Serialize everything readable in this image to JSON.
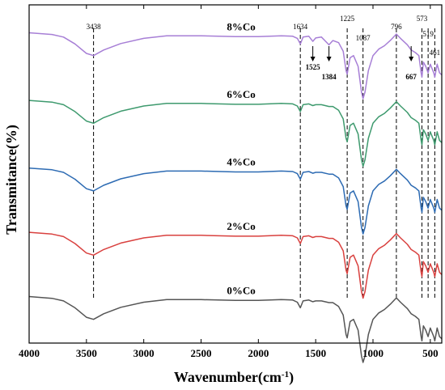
{
  "chart_data": {
    "type": "line",
    "xlabel": "Wavenumber(cm",
    "xlabel_sup": "-1",
    "xlabel_close": ")",
    "ylabel": "Transmitance(%)",
    "xlim": [
      4000,
      400
    ],
    "xticks": [
      4000,
      3500,
      3000,
      2500,
      2000,
      1500,
      1000,
      500
    ],
    "x_reversed": true,
    "grid": false,
    "legend": "none",
    "series": [
      {
        "name": "8%Co",
        "color": "#a77fd6",
        "baseline": 0.92,
        "points": [
          [
            4000,
            0.02
          ],
          [
            3800,
            0.06
          ],
          [
            3700,
            0.12
          ],
          [
            3600,
            0.28
          ],
          [
            3500,
            0.5
          ],
          [
            3438,
            0.55
          ],
          [
            3350,
            0.42
          ],
          [
            3200,
            0.27
          ],
          [
            3000,
            0.15
          ],
          [
            2800,
            0.09
          ],
          [
            2500,
            0.09
          ],
          [
            2200,
            0.11
          ],
          [
            2000,
            0.11
          ],
          [
            1800,
            0.09
          ],
          [
            1700,
            0.1
          ],
          [
            1660,
            0.15
          ],
          [
            1634,
            0.28
          ],
          [
            1610,
            0.12
          ],
          [
            1560,
            0.1
          ],
          [
            1525,
            0.22
          ],
          [
            1500,
            0.14
          ],
          [
            1450,
            0.12
          ],
          [
            1384,
            0.3
          ],
          [
            1350,
            0.2
          ],
          [
            1300,
            0.25
          ],
          [
            1260,
            0.45
          ],
          [
            1235,
            0.9
          ],
          [
            1225,
            0.98
          ],
          [
            1200,
            0.6
          ],
          [
            1170,
            0.55
          ],
          [
            1130,
            0.8
          ],
          [
            1100,
            1.4
          ],
          [
            1087,
            1.55
          ],
          [
            1070,
            1.4
          ],
          [
            1040,
            0.9
          ],
          [
            1000,
            0.55
          ],
          [
            950,
            0.4
          ],
          [
            900,
            0.32
          ],
          [
            850,
            0.2
          ],
          [
            796,
            0.05
          ],
          [
            760,
            0.15
          ],
          [
            700,
            0.3
          ],
          [
            667,
            0.42
          ],
          [
            630,
            0.48
          ],
          [
            600,
            0.55
          ],
          [
            580,
            0.95
          ],
          [
            573,
            1.05
          ],
          [
            560,
            0.7
          ],
          [
            540,
            0.8
          ],
          [
            519,
            0.95
          ],
          [
            500,
            0.75
          ],
          [
            470,
            0.95
          ],
          [
            461,
            1.05
          ],
          [
            440,
            0.75
          ],
          [
            420,
            0.95
          ],
          [
            400,
            1.0
          ]
        ]
      },
      {
        "name": "6%Co",
        "color": "#3e9a6e",
        "baseline": 0.72,
        "points": [
          [
            4000,
            0.02
          ],
          [
            3800,
            0.06
          ],
          [
            3700,
            0.12
          ],
          [
            3600,
            0.28
          ],
          [
            3500,
            0.5
          ],
          [
            3438,
            0.55
          ],
          [
            3350,
            0.42
          ],
          [
            3200,
            0.27
          ],
          [
            3000,
            0.15
          ],
          [
            2800,
            0.09
          ],
          [
            2500,
            0.09
          ],
          [
            2200,
            0.11
          ],
          [
            2000,
            0.11
          ],
          [
            1800,
            0.09
          ],
          [
            1700,
            0.1
          ],
          [
            1660,
            0.15
          ],
          [
            1634,
            0.28
          ],
          [
            1610,
            0.12
          ],
          [
            1560,
            0.1
          ],
          [
            1525,
            0.14
          ],
          [
            1500,
            0.12
          ],
          [
            1450,
            0.12
          ],
          [
            1384,
            0.16
          ],
          [
            1350,
            0.16
          ],
          [
            1300,
            0.25
          ],
          [
            1260,
            0.45
          ],
          [
            1235,
            0.9
          ],
          [
            1225,
            0.98
          ],
          [
            1200,
            0.6
          ],
          [
            1170,
            0.55
          ],
          [
            1130,
            0.8
          ],
          [
            1100,
            1.4
          ],
          [
            1087,
            1.55
          ],
          [
            1070,
            1.4
          ],
          [
            1040,
            0.9
          ],
          [
            1000,
            0.55
          ],
          [
            950,
            0.4
          ],
          [
            900,
            0.32
          ],
          [
            850,
            0.2
          ],
          [
            796,
            0.05
          ],
          [
            760,
            0.15
          ],
          [
            700,
            0.3
          ],
          [
            667,
            0.42
          ],
          [
            630,
            0.48
          ],
          [
            600,
            0.55
          ],
          [
            580,
            0.95
          ],
          [
            573,
            1.05
          ],
          [
            560,
            0.7
          ],
          [
            540,
            0.8
          ],
          [
            519,
            0.95
          ],
          [
            500,
            0.75
          ],
          [
            470,
            0.95
          ],
          [
            461,
            1.05
          ],
          [
            440,
            0.75
          ],
          [
            420,
            0.95
          ],
          [
            400,
            1.0
          ]
        ]
      },
      {
        "name": "4%Co",
        "color": "#2d6bb3",
        "baseline": 0.52,
        "points": [
          [
            4000,
            0.02
          ],
          [
            3800,
            0.06
          ],
          [
            3700,
            0.12
          ],
          [
            3600,
            0.28
          ],
          [
            3500,
            0.5
          ],
          [
            3438,
            0.55
          ],
          [
            3350,
            0.42
          ],
          [
            3200,
            0.27
          ],
          [
            3000,
            0.15
          ],
          [
            2800,
            0.09
          ],
          [
            2500,
            0.09
          ],
          [
            2200,
            0.11
          ],
          [
            2000,
            0.11
          ],
          [
            1800,
            0.09
          ],
          [
            1700,
            0.1
          ],
          [
            1660,
            0.15
          ],
          [
            1634,
            0.28
          ],
          [
            1610,
            0.12
          ],
          [
            1560,
            0.1
          ],
          [
            1525,
            0.14
          ],
          [
            1500,
            0.12
          ],
          [
            1450,
            0.12
          ],
          [
            1384,
            0.16
          ],
          [
            1350,
            0.16
          ],
          [
            1300,
            0.25
          ],
          [
            1260,
            0.45
          ],
          [
            1235,
            0.9
          ],
          [
            1225,
            0.98
          ],
          [
            1200,
            0.6
          ],
          [
            1170,
            0.55
          ],
          [
            1130,
            0.8
          ],
          [
            1100,
            1.4
          ],
          [
            1087,
            1.55
          ],
          [
            1070,
            1.4
          ],
          [
            1040,
            0.9
          ],
          [
            1000,
            0.55
          ],
          [
            950,
            0.4
          ],
          [
            900,
            0.32
          ],
          [
            850,
            0.2
          ],
          [
            796,
            0.05
          ],
          [
            760,
            0.15
          ],
          [
            700,
            0.3
          ],
          [
            667,
            0.42
          ],
          [
            630,
            0.48
          ],
          [
            600,
            0.55
          ],
          [
            580,
            0.95
          ],
          [
            573,
            1.05
          ],
          [
            560,
            0.7
          ],
          [
            540,
            0.8
          ],
          [
            519,
            0.95
          ],
          [
            500,
            0.75
          ],
          [
            470,
            0.95
          ],
          [
            461,
            1.05
          ],
          [
            440,
            0.75
          ],
          [
            420,
            0.95
          ],
          [
            400,
            1.0
          ]
        ]
      },
      {
        "name": "2%Co",
        "color": "#d9413f",
        "baseline": 0.33,
        "points": [
          [
            4000,
            0.02
          ],
          [
            3800,
            0.06
          ],
          [
            3700,
            0.12
          ],
          [
            3600,
            0.28
          ],
          [
            3500,
            0.5
          ],
          [
            3438,
            0.55
          ],
          [
            3350,
            0.42
          ],
          [
            3200,
            0.27
          ],
          [
            3000,
            0.15
          ],
          [
            2800,
            0.09
          ],
          [
            2500,
            0.09
          ],
          [
            2200,
            0.11
          ],
          [
            2000,
            0.11
          ],
          [
            1800,
            0.09
          ],
          [
            1700,
            0.1
          ],
          [
            1660,
            0.15
          ],
          [
            1634,
            0.28
          ],
          [
            1610,
            0.12
          ],
          [
            1560,
            0.1
          ],
          [
            1525,
            0.14
          ],
          [
            1500,
            0.12
          ],
          [
            1450,
            0.12
          ],
          [
            1384,
            0.16
          ],
          [
            1350,
            0.16
          ],
          [
            1300,
            0.25
          ],
          [
            1260,
            0.45
          ],
          [
            1235,
            0.9
          ],
          [
            1225,
            0.98
          ],
          [
            1200,
            0.6
          ],
          [
            1170,
            0.55
          ],
          [
            1130,
            0.8
          ],
          [
            1100,
            1.4
          ],
          [
            1087,
            1.55
          ],
          [
            1070,
            1.4
          ],
          [
            1040,
            0.9
          ],
          [
            1000,
            0.55
          ],
          [
            950,
            0.4
          ],
          [
            900,
            0.32
          ],
          [
            850,
            0.2
          ],
          [
            796,
            0.05
          ],
          [
            760,
            0.15
          ],
          [
            700,
            0.3
          ],
          [
            667,
            0.42
          ],
          [
            630,
            0.48
          ],
          [
            600,
            0.55
          ],
          [
            580,
            0.95
          ],
          [
            573,
            1.05
          ],
          [
            560,
            0.7
          ],
          [
            540,
            0.8
          ],
          [
            519,
            0.95
          ],
          [
            500,
            0.75
          ],
          [
            470,
            0.95
          ],
          [
            461,
            1.05
          ],
          [
            440,
            0.75
          ],
          [
            420,
            0.95
          ],
          [
            400,
            1.0
          ]
        ]
      },
      {
        "name": "0%Co",
        "color": "#555555",
        "baseline": 0.14,
        "points": [
          [
            4000,
            0.02
          ],
          [
            3800,
            0.06
          ],
          [
            3700,
            0.12
          ],
          [
            3600,
            0.28
          ],
          [
            3500,
            0.5
          ],
          [
            3438,
            0.55
          ],
          [
            3350,
            0.42
          ],
          [
            3200,
            0.27
          ],
          [
            3000,
            0.15
          ],
          [
            2800,
            0.09
          ],
          [
            2500,
            0.09
          ],
          [
            2200,
            0.11
          ],
          [
            2000,
            0.11
          ],
          [
            1800,
            0.09
          ],
          [
            1700,
            0.1
          ],
          [
            1660,
            0.15
          ],
          [
            1634,
            0.28
          ],
          [
            1610,
            0.12
          ],
          [
            1560,
            0.1
          ],
          [
            1525,
            0.14
          ],
          [
            1500,
            0.12
          ],
          [
            1450,
            0.12
          ],
          [
            1384,
            0.16
          ],
          [
            1350,
            0.16
          ],
          [
            1300,
            0.25
          ],
          [
            1260,
            0.45
          ],
          [
            1235,
            0.9
          ],
          [
            1225,
            0.98
          ],
          [
            1200,
            0.6
          ],
          [
            1170,
            0.55
          ],
          [
            1130,
            0.8
          ],
          [
            1100,
            1.4
          ],
          [
            1087,
            1.55
          ],
          [
            1070,
            1.4
          ],
          [
            1040,
            0.9
          ],
          [
            1000,
            0.55
          ],
          [
            950,
            0.4
          ],
          [
            900,
            0.32
          ],
          [
            850,
            0.2
          ],
          [
            796,
            0.05
          ],
          [
            760,
            0.15
          ],
          [
            700,
            0.3
          ],
          [
            667,
            0.42
          ],
          [
            630,
            0.48
          ],
          [
            600,
            0.55
          ],
          [
            580,
            0.95
          ],
          [
            573,
            1.05
          ],
          [
            560,
            0.7
          ],
          [
            540,
            0.8
          ],
          [
            519,
            0.95
          ],
          [
            500,
            0.75
          ],
          [
            470,
            0.95
          ],
          [
            461,
            1.05
          ],
          [
            440,
            0.75
          ],
          [
            420,
            0.95
          ],
          [
            400,
            1.0
          ]
        ]
      }
    ],
    "peak_lines": [
      3438,
      1634,
      1225,
      1087,
      796,
      573,
      519,
      461
    ],
    "peak_labels": [
      {
        "text": "3438",
        "x": 3438,
        "bold": false
      },
      {
        "text": "1634",
        "x": 1634,
        "bold": false
      },
      {
        "text": "1225",
        "x": 1225,
        "bold": false
      },
      {
        "text": "1087",
        "x": 1087,
        "bold": false
      },
      {
        "text": "796",
        "x": 796,
        "bold": false
      },
      {
        "text": "573",
        "x": 573,
        "bold": false
      },
      {
        "text": "519",
        "x": 519,
        "bold": false
      },
      {
        "text": "461",
        "x": 461,
        "bold": false
      }
    ],
    "arrow_labels": [
      {
        "text": "1525",
        "x": 1525
      },
      {
        "text": "1384",
        "x": 1384
      },
      {
        "text": "667",
        "x": 667
      }
    ]
  }
}
